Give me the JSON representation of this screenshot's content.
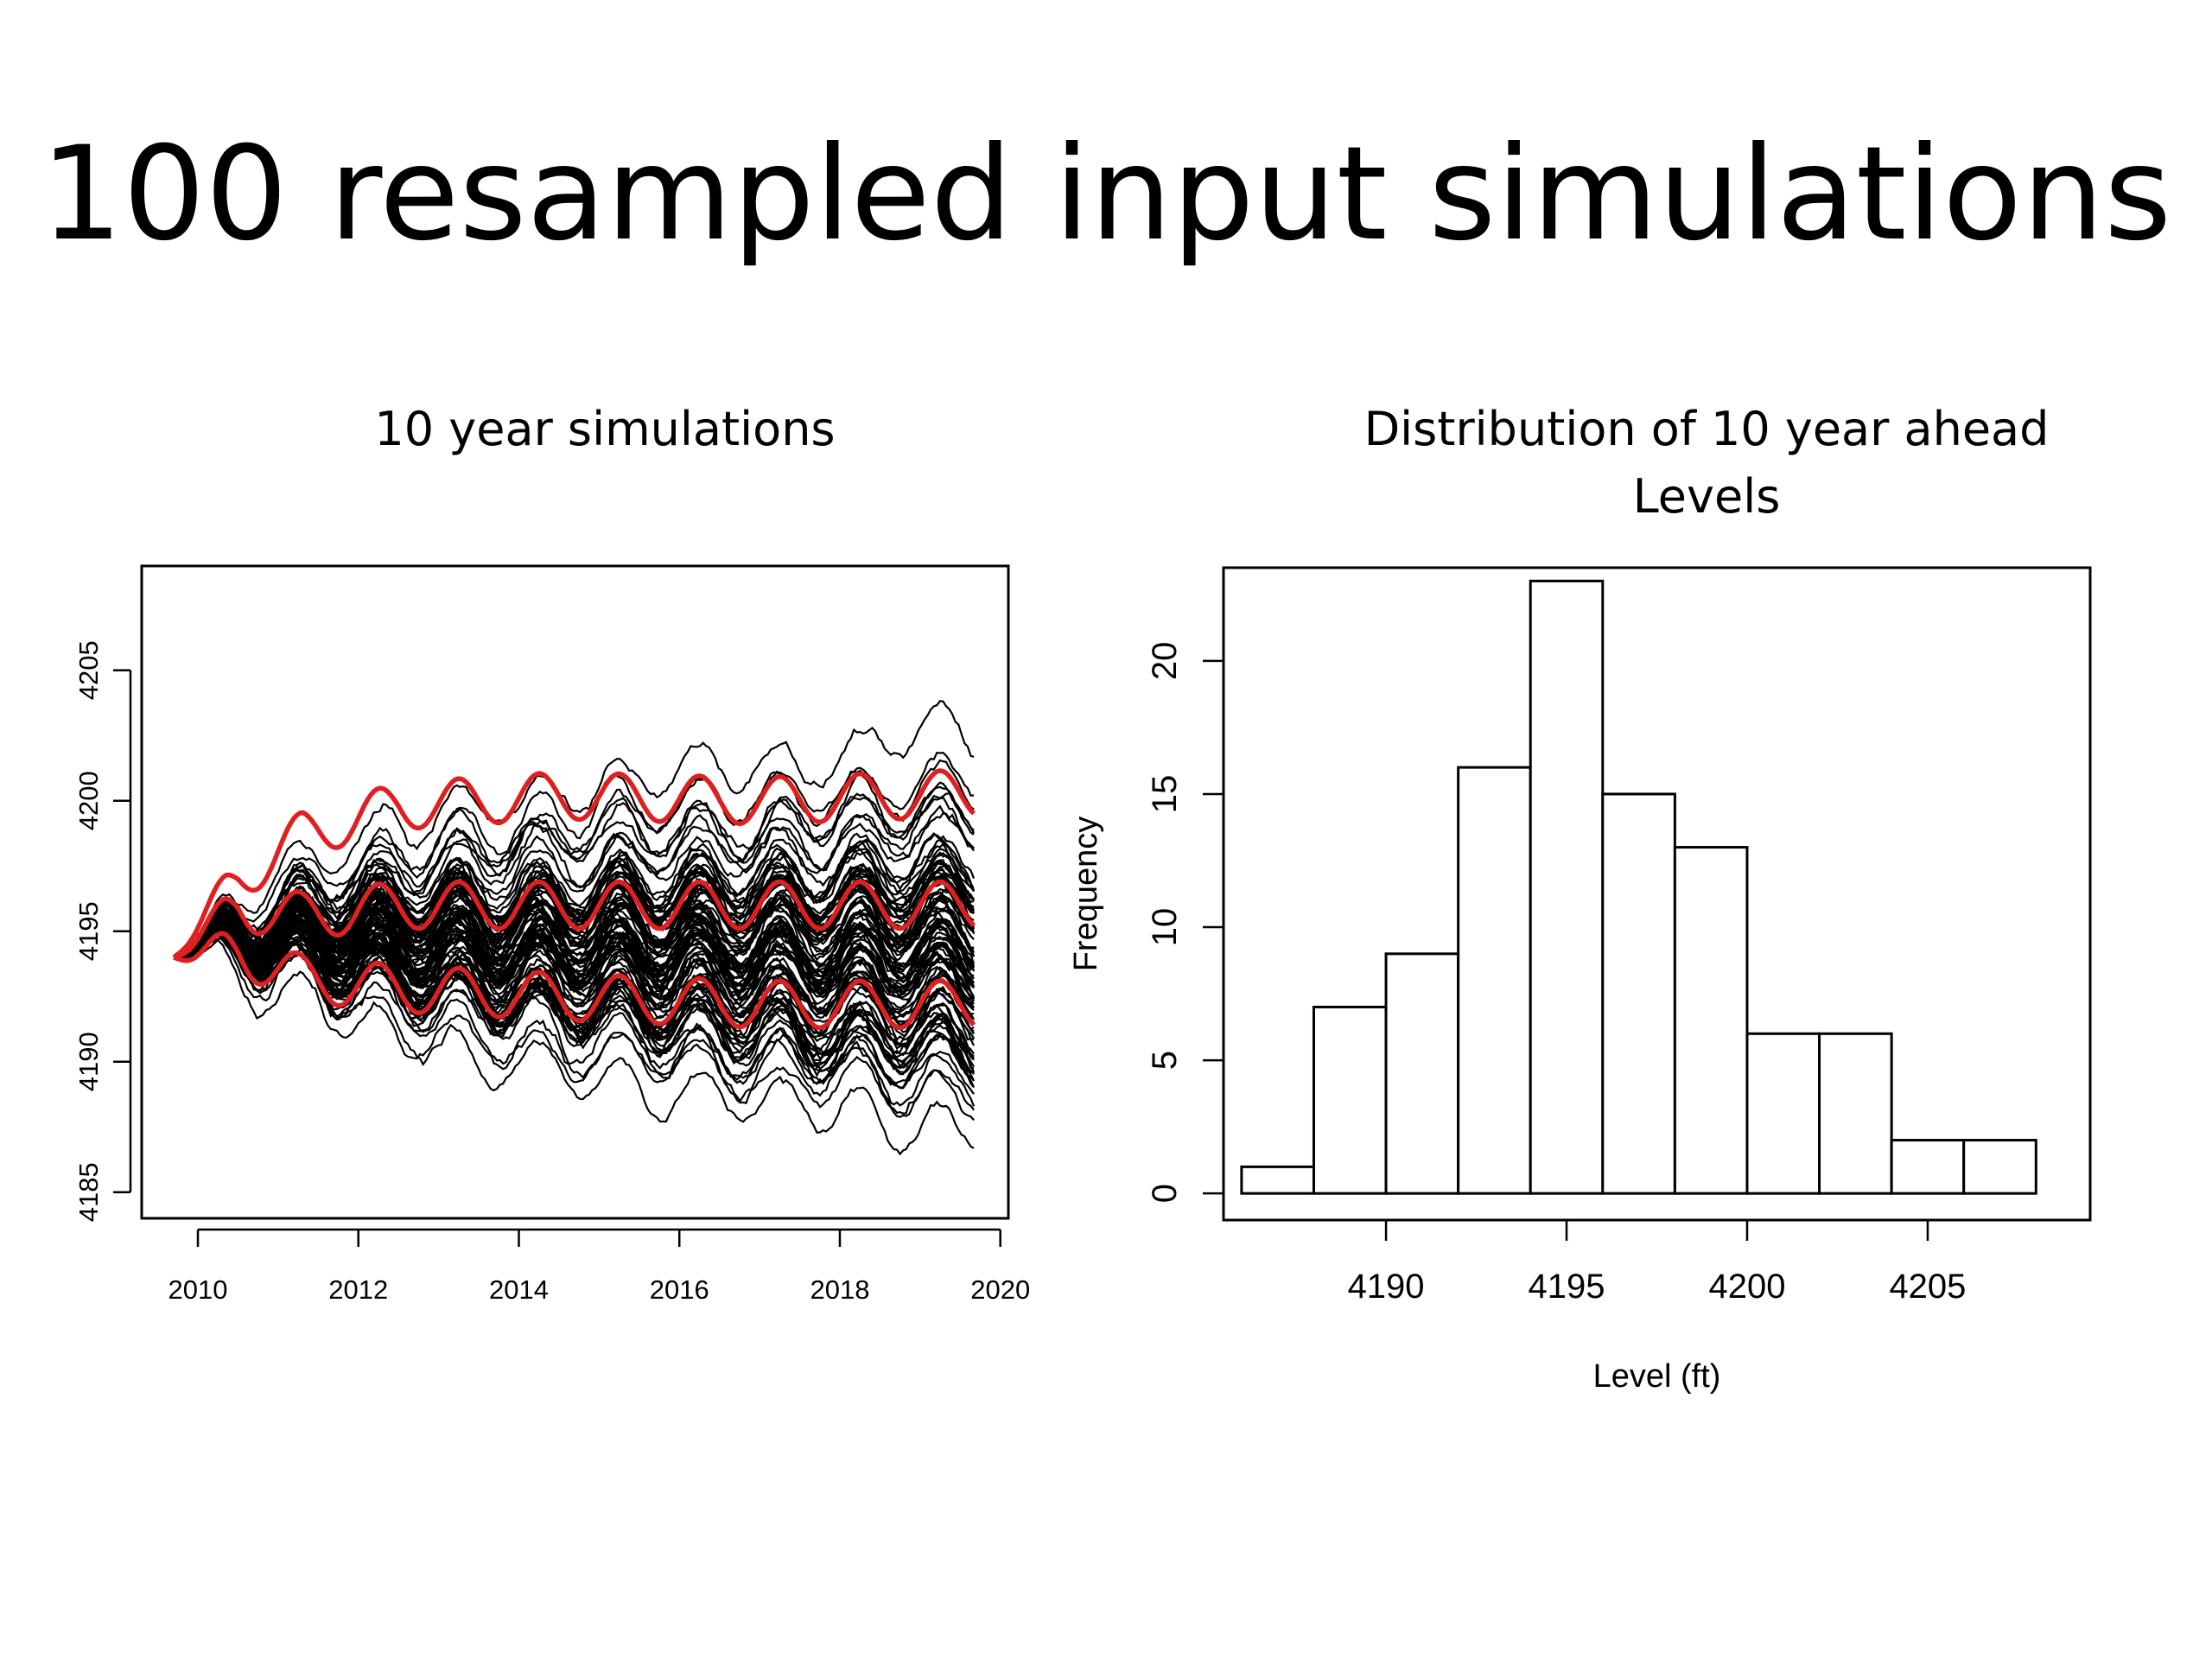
{
  "slide": {
    "title": "100 resampled input simulations"
  },
  "colors": {
    "sim_line": "#000000",
    "quantile_line": "#e02020",
    "bar_fill": "#ffffff",
    "bar_stroke": "#000000"
  },
  "chart_data": [
    {
      "type": "line",
      "title": "10 year simulations",
      "xlabel": "",
      "ylabel": "",
      "xlim": [
        2009.3,
        2020.1
      ],
      "ylim": [
        4184,
        4209
      ],
      "x_ticks": [
        2010,
        2012,
        2014,
        2016,
        2018,
        2020
      ],
      "y_ticks": [
        4185,
        4190,
        4195,
        4200,
        4205
      ],
      "start": {
        "x": 2009.7,
        "y": 4194
      },
      "end_x": 2019.67,
      "n_simulations": 100,
      "seasonal_amplitude": 0.9,
      "quantile_series": [
        {
          "name": "upper",
          "knots": [
            [
              2009.7,
              4194
            ],
            [
              2010.5,
              4197
            ],
            [
              2011.3,
              4198.7
            ],
            [
              2012.5,
              4199.8
            ],
            [
              2014.5,
              4200.2
            ],
            [
              2017.0,
              4200
            ],
            [
              2019.67,
              4200.3
            ]
          ]
        },
        {
          "name": "median",
          "knots": [
            [
              2009.7,
              4194
            ],
            [
              2010.5,
              4195.9
            ],
            [
              2011.3,
              4195.6
            ],
            [
              2012.5,
              4196
            ],
            [
              2014.5,
              4196
            ],
            [
              2017.0,
              4196
            ],
            [
              2019.67,
              4196
            ]
          ]
        },
        {
          "name": "lower",
          "knots": [
            [
              2009.7,
              4194
            ],
            [
              2010.5,
              4194.2
            ],
            [
              2011.3,
              4193.2
            ],
            [
              2012.5,
              4192.8
            ],
            [
              2014.5,
              4192.5
            ],
            [
              2017.0,
              4192.2
            ],
            [
              2019.67,
              4192.2
            ]
          ]
        }
      ]
    },
    {
      "type": "bar",
      "title_lines": [
        "Distribution of 10 year ahead",
        "Levels"
      ],
      "xlabel": "Level (ft)",
      "ylabel": "Frequency",
      "xlim": [
        4185.5,
        4209.5
      ],
      "ylim": [
        -1,
        23.5
      ],
      "x_ticks": [
        4190,
        4195,
        4200,
        4205
      ],
      "y_ticks": [
        0,
        5,
        10,
        15,
        20
      ],
      "bins": [
        4186,
        4188,
        4190,
        4192,
        4194,
        4196,
        4198,
        4200,
        4202,
        4204,
        4206,
        4208
      ],
      "counts": [
        1,
        7,
        9,
        16,
        23,
        15,
        13,
        6,
        6,
        2,
        2
      ]
    }
  ]
}
